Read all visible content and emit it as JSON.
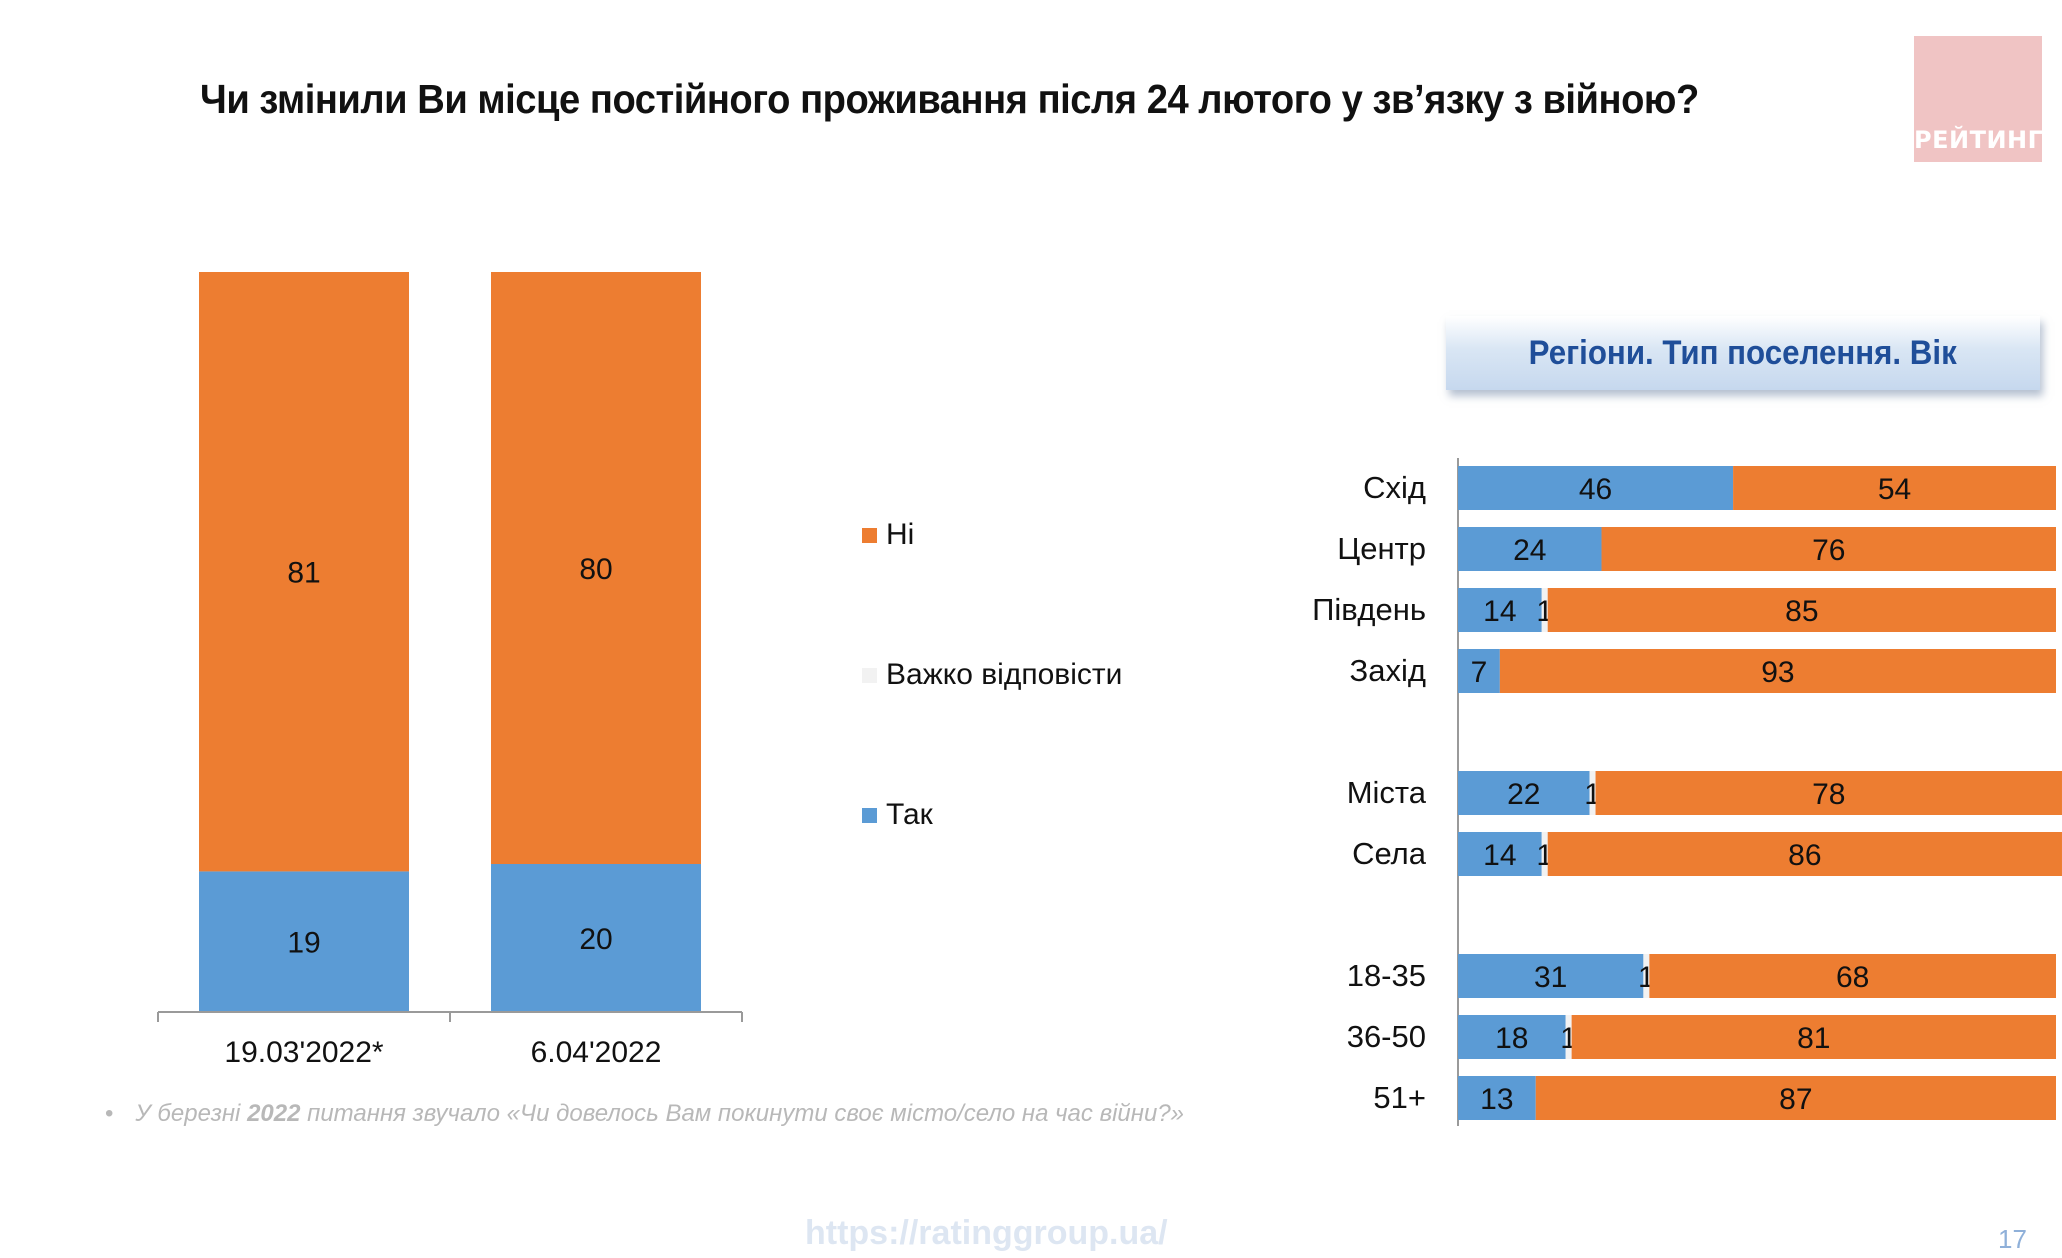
{
  "title": "Чи змінили Ви місце постійного проживання після  24 лютого у зв’язку з війною?",
  "logo": {
    "text": "РЕЙТИНГ",
    "color": "#f0c4c4"
  },
  "legend": {
    "items": [
      {
        "label": "Ні",
        "color": "#ed7d31"
      },
      {
        "label": "Важко відповісти",
        "color": "#f2f2f2"
      },
      {
        "label": "Так",
        "color": "#5b9bd5"
      }
    ]
  },
  "right_header": "Регіони. Тип поселення. Вік",
  "footnote": {
    "bullet": "•",
    "prefix": "У березні ",
    "year": "2022",
    "suffix": " питання звучало «Чи довелось Вам покинути своє місто/село на час війни?»"
  },
  "url": "https://ratinggroup.ua/",
  "page_number": "17",
  "colors": {
    "yes": "#5b9bd5",
    "no": "#ed7d31",
    "hard": "#f2f2f2"
  },
  "chart_data": [
    {
      "type": "bar",
      "stacked": true,
      "orientation": "vertical",
      "categories": [
        "19.03'2022*",
        "6.04'2022"
      ],
      "series": [
        {
          "name": "Так",
          "values": [
            19,
            20
          ]
        },
        {
          "name": "Важко відповісти",
          "values": [
            0,
            0
          ]
        },
        {
          "name": "Ні",
          "values": [
            81,
            80
          ]
        }
      ],
      "ylim": [
        0,
        100
      ],
      "legend": "right"
    },
    {
      "type": "bar",
      "stacked": true,
      "orientation": "horizontal",
      "title": "Регіони. Тип поселення. Вік",
      "groups": [
        [
          "Схід",
          "Центр",
          "Південь",
          "Захід"
        ],
        [
          "Міста",
          "Села"
        ],
        [
          "18-35",
          "36-50",
          "51+"
        ]
      ],
      "categories": [
        "Схід",
        "Центр",
        "Південь",
        "Захід",
        "Міста",
        "Села",
        "18-35",
        "36-50",
        "51+"
      ],
      "series": [
        {
          "name": "Так",
          "values": [
            46,
            24,
            14,
            7,
            22,
            14,
            31,
            18,
            13
          ]
        },
        {
          "name": "Важко відповісти",
          "values": [
            0,
            0,
            1,
            0,
            1,
            1,
            1,
            1,
            0
          ]
        },
        {
          "name": "Ні",
          "values": [
            54,
            76,
            85,
            93,
            78,
            86,
            68,
            81,
            87
          ]
        }
      ],
      "xlim": [
        0,
        100
      ]
    }
  ]
}
